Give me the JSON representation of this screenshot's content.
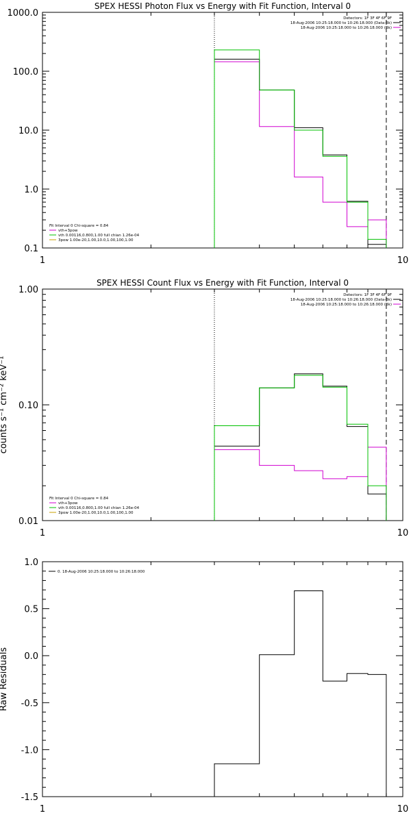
{
  "colors": {
    "data": "#000000",
    "model": "#d000d0",
    "fit": "#00c000",
    "pow": "#c8a000"
  },
  "chart_data": [
    {
      "type": "line",
      "title": "SPEX HESSI Photon Flux vs Energy with Fit Function, Interval 0",
      "xscale": "log",
      "yscale": "log",
      "xlim": [
        1,
        10
      ],
      "ylim": [
        0.1,
        1000
      ],
      "xticks": [
        "1",
        "10"
      ],
      "yticks": [
        "1000.0",
        "100.0",
        "10.0",
        "1.0",
        "0.1"
      ],
      "xlabel": "",
      "ylabel": "",
      "vlines": {
        "dotted": 3.0,
        "dashed": 9.0
      },
      "header": {
        "detectors": "Detectors: 1F 3F 4F 6F 9F",
        "rows": [
          {
            "text": "18-Aug-2006 10:25:18.000 to 10:26:18.000 (Data-Bk)",
            "color": "data"
          },
          {
            "text": "18-Aug-2006 10:25:18.000 to 10:26:18.000 (Bk)",
            "color": "model"
          }
        ]
      },
      "legend": {
        "head": "Fit Interval 0   Chi-square = 0.84",
        "rows": [
          {
            "text": "vth+3pow",
            "color": "model"
          },
          {
            "text": "vth 0.00116,0.800,1.00   full chian 1.26e-04",
            "color": "fit"
          },
          {
            "text": "3pow 1.00e-20,1.00,10.0,1.00,100,1.00",
            "color": "pow"
          }
        ]
      },
      "edges": [
        3.0,
        4.0,
        5.0,
        6.0,
        7.0,
        8.0,
        9.0
      ],
      "series": [
        {
          "name": "Data-Bk",
          "color": "data",
          "values": [
            160,
            48,
            11,
            3.8,
            0.62,
            0.115
          ]
        },
        {
          "name": "Bk",
          "color": "model",
          "values": [
            145,
            11.5,
            1.6,
            0.6,
            0.23,
            0.3
          ]
        },
        {
          "name": "vth",
          "color": "fit",
          "values": [
            230,
            48,
            10,
            3.6,
            0.6,
            0.14
          ]
        }
      ]
    },
    {
      "type": "line",
      "title": "SPEX HESSI Count Flux vs Energy with Fit Function, Interval 0",
      "xscale": "log",
      "yscale": "log",
      "xlim": [
        1,
        10
      ],
      "ylim": [
        0.01,
        1.0
      ],
      "xticks": [
        "1",
        "10"
      ],
      "yticks": [
        "1.00",
        "0.10",
        "0.01"
      ],
      "xlabel": "",
      "ylabel": "counts s⁻¹ cm⁻² keV⁻¹",
      "vlines": {
        "dotted": 3.0,
        "dashed": 9.0
      },
      "header": {
        "detectors": "Detectors: 1F 3F 4F 6F 9F",
        "rows": [
          {
            "text": "18-Aug-2006 10:25:18.000 to 10:26:18.000 (Data-Bk)",
            "color": "data"
          },
          {
            "text": "18-Aug-2006 10:25:18.000 to 10:26:18.000 (Bk)",
            "color": "model"
          }
        ]
      },
      "legend": {
        "head": "Fit Interval 0   Chi-square = 0.84",
        "rows": [
          {
            "text": "vth+3pow",
            "color": "model"
          },
          {
            "text": "vth 0.00116,0.800,1.00   full chian 1.26e-04",
            "color": "fit"
          },
          {
            "text": "3pow 1.00e-20,1.00,10.0,1.00,100,1.00",
            "color": "pow"
          }
        ]
      },
      "edges": [
        3.0,
        4.0,
        5.0,
        6.0,
        7.0,
        8.0,
        9.0
      ],
      "series": [
        {
          "name": "Data-Bk",
          "color": "data",
          "values": [
            0.044,
            0.14,
            0.185,
            0.145,
            0.065,
            0.017
          ]
        },
        {
          "name": "Bk",
          "color": "model",
          "values": [
            0.041,
            0.03,
            0.027,
            0.023,
            0.024,
            0.043
          ]
        },
        {
          "name": "vth",
          "color": "fit",
          "values": [
            0.066,
            0.14,
            0.18,
            0.142,
            0.068,
            0.02
          ]
        }
      ]
    },
    {
      "type": "line",
      "title": "",
      "xscale": "log",
      "yscale": "linear",
      "xlim": [
        1,
        10
      ],
      "ylim": [
        -1.5,
        1.0
      ],
      "xticks": [
        "1",
        "10"
      ],
      "yticks": [
        "1.0",
        "0.5",
        "0.0",
        "-0.5",
        "-1.0",
        "-1.5"
      ],
      "xlabel": "",
      "ylabel": "Raw Residuals",
      "legend": {
        "head": "",
        "rows": [
          {
            "text": "0. 18-Aug-2006 10:25:18.000 to 10:26:18.000",
            "color": "data"
          }
        ]
      },
      "edges": [
        3.0,
        4.0,
        5.0,
        6.0,
        7.0,
        8.0,
        9.0
      ],
      "series": [
        {
          "name": "",
          "color": "data",
          "values": [
            -1.15,
            0.01,
            0.69,
            -0.27,
            -0.19,
            -0.2
          ]
        }
      ]
    }
  ]
}
